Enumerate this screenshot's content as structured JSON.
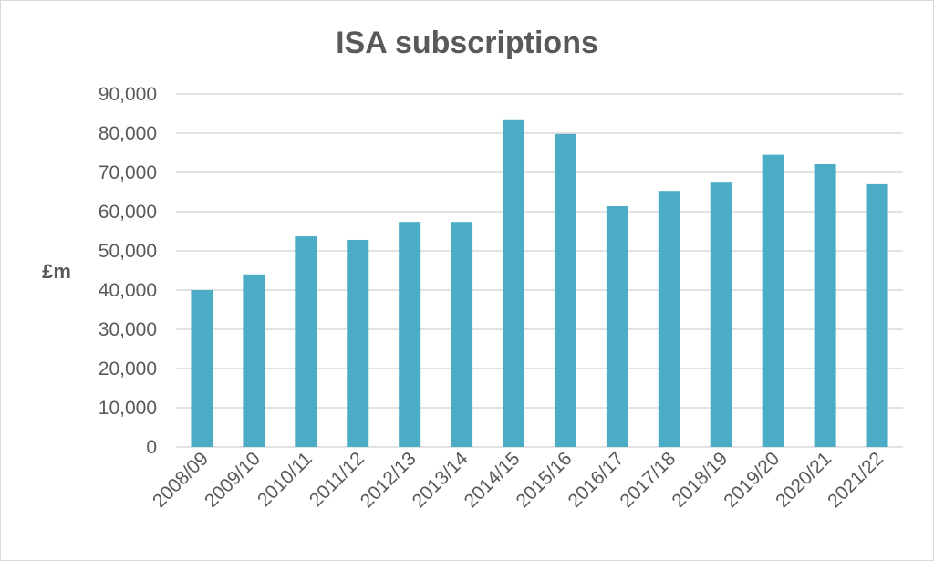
{
  "chart_data": {
    "type": "bar",
    "title": "ISA subscriptions",
    "xlabel": "",
    "ylabel": "£m",
    "ylim": [
      0,
      90000
    ],
    "yticks": [
      0,
      10000,
      20000,
      30000,
      40000,
      50000,
      60000,
      70000,
      80000,
      90000
    ],
    "ytick_labels": [
      "0",
      "10,000",
      "20,000",
      "30,000",
      "40,000",
      "50,000",
      "60,000",
      "70,000",
      "80,000",
      "90,000"
    ],
    "grid": true,
    "categories": [
      "2008/09",
      "2009/10",
      "2010/11",
      "2011/12",
      "2012/13",
      "2013/14",
      "2014/15",
      "2015/16",
      "2016/17",
      "2017/18",
      "2018/19",
      "2019/20",
      "2020/21",
      "2021/22"
    ],
    "values": [
      40000,
      44000,
      53700,
      52800,
      57400,
      57400,
      83300,
      79800,
      61400,
      65300,
      67400,
      74500,
      72100,
      67000
    ],
    "bar_color": "#4bacc6",
    "grid_color": "#d9d9d9"
  }
}
